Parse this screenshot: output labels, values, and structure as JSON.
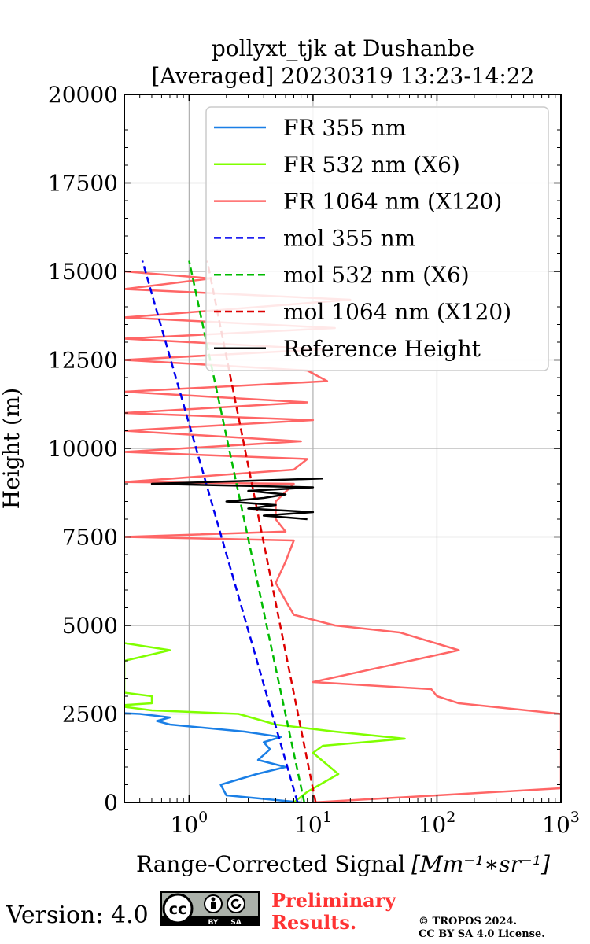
{
  "chart_data": {
    "type": "line",
    "title": "pollyxt_tjk at Dushanbe",
    "subtitle": "[Averaged] 20230319 13:23-14:22",
    "xlabel": "Range-Corrected Signal",
    "xlabel_units": "[Mm⁻¹∗sr⁻¹]",
    "ylabel": "Height (m)",
    "xscale": "log",
    "xlim": [
      0.3,
      1000
    ],
    "ylim": [
      0,
      20000
    ],
    "grid": true,
    "legend_position": "top-right",
    "x_ticks": [
      {
        "value": 1,
        "base": "10",
        "exp": "0"
      },
      {
        "value": 10,
        "base": "10",
        "exp": "1"
      },
      {
        "value": 100,
        "base": "10",
        "exp": "2"
      },
      {
        "value": 1000,
        "base": "10",
        "exp": "3"
      }
    ],
    "y_ticks": [
      0,
      2500,
      5000,
      7500,
      10000,
      12500,
      15000,
      17500,
      20000
    ],
    "series": [
      {
        "name": "FR 355 nm",
        "color": "#1a7fe6",
        "style": "solid",
        "points": [
          [
            8,
            0
          ],
          [
            2,
            200
          ],
          [
            1.8,
            500
          ],
          [
            3.5,
            800
          ],
          [
            6,
            1000
          ],
          [
            3.6,
            1200
          ],
          [
            4.5,
            1500
          ],
          [
            4.0,
            1700
          ],
          [
            5.5,
            1850
          ],
          [
            2.8,
            2000
          ],
          [
            0.7,
            2200
          ],
          [
            0.55,
            2300
          ],
          [
            0.7,
            2400
          ],
          [
            0.4,
            2500
          ],
          [
            0.3,
            2520
          ]
        ]
      },
      {
        "name": "FR 532 nm (X6)",
        "color": "#80ff00",
        "style": "solid",
        "points": [
          [
            7,
            0
          ],
          [
            9,
            300
          ],
          [
            16,
            800
          ],
          [
            10,
            1400
          ],
          [
            12,
            1600
          ],
          [
            55,
            1800
          ],
          [
            15,
            2000
          ],
          [
            5,
            2200
          ],
          [
            2.5,
            2500
          ],
          [
            0.5,
            2600
          ],
          [
            0.3,
            2700
          ],
          [
            0.3,
            2750
          ],
          [
            0.5,
            2800
          ],
          [
            0.5,
            3000
          ],
          [
            0.3,
            3100
          ],
          [
            0.3,
            4000
          ],
          [
            0.7,
            4300
          ],
          [
            0.3,
            4500
          ]
        ]
      },
      {
        "name": "FR 1064 nm (X120)",
        "color": "#ff6666",
        "style": "solid",
        "points": [
          [
            10,
            0
          ],
          [
            1000,
            400
          ],
          [
            1000,
            2500
          ],
          [
            150,
            2800
          ],
          [
            100,
            3000
          ],
          [
            90,
            3200
          ],
          [
            10,
            3400
          ],
          [
            150,
            4300
          ],
          [
            50,
            4800
          ],
          [
            15,
            5000
          ],
          [
            7,
            5300
          ],
          [
            6,
            5700
          ],
          [
            5,
            6200
          ],
          [
            6,
            6800
          ],
          [
            7,
            7400
          ],
          [
            0.3,
            7500
          ],
          [
            6,
            7650
          ],
          [
            5,
            8000
          ],
          [
            5,
            8500
          ],
          [
            7,
            9000
          ],
          [
            0.3,
            9050
          ],
          [
            7,
            9400
          ],
          [
            9,
            9700
          ],
          [
            0.3,
            9900
          ],
          [
            8,
            10200
          ],
          [
            0.3,
            10500
          ],
          [
            10,
            10800
          ],
          [
            0.3,
            11000
          ],
          [
            9,
            11300
          ],
          [
            0.3,
            11600
          ],
          [
            13,
            11900
          ],
          [
            9,
            12200
          ],
          [
            0.3,
            12500
          ],
          [
            12,
            12800
          ],
          [
            0.3,
            13100
          ],
          [
            15,
            13400
          ],
          [
            0.3,
            13700
          ],
          [
            20,
            14200
          ],
          [
            0.3,
            14500
          ],
          [
            1.5,
            14800
          ],
          [
            0.3,
            15000
          ]
        ]
      },
      {
        "name": "mol 355 nm",
        "color": "#0000ee",
        "style": "dashed",
        "points": [
          [
            7.5,
            0
          ],
          [
            0.42,
            15300
          ]
        ]
      },
      {
        "name": "mol 532 nm (X6)",
        "color": "#00bb00",
        "style": "dashed",
        "points": [
          [
            8.5,
            0
          ],
          [
            1,
            15300
          ]
        ]
      },
      {
        "name": "mol 1064 nm (X120)",
        "color": "#dd0000",
        "style": "dashed",
        "points": [
          [
            10.5,
            0
          ],
          [
            1.4,
            15300
          ]
        ]
      },
      {
        "name": "Reference Height",
        "color": "#000000",
        "style": "solid",
        "points": [
          [
            9,
            8000
          ],
          [
            4,
            8100
          ],
          [
            10,
            8200
          ],
          [
            3,
            8300
          ],
          [
            5,
            8400
          ],
          [
            2,
            8500
          ],
          [
            4,
            8600
          ],
          [
            6,
            8700
          ],
          [
            3,
            8800
          ],
          [
            10,
            8900
          ],
          [
            0.5,
            9000
          ],
          [
            12,
            9150
          ]
        ]
      }
    ]
  },
  "footer": {
    "version": "Version: 4.0",
    "license_badge": {
      "cc": "cc",
      "by": "BY",
      "sa": "SA"
    },
    "preliminary_line1": "Preliminary",
    "preliminary_line2": "Results.",
    "copyright_line1": "© TROPOS 2024.",
    "copyright_line2": "CC BY SA 4.0 License."
  }
}
